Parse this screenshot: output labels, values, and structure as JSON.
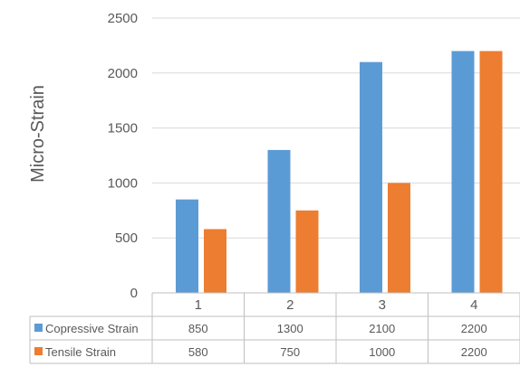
{
  "chart_data": {
    "type": "bar",
    "title": "",
    "xlabel": "",
    "ylabel": "Micro-Strain",
    "categories": [
      "1",
      "2",
      "3",
      "4"
    ],
    "series": [
      {
        "name": "Copressive Strain",
        "color": "#5b9bd5",
        "values": [
          850,
          1300,
          2100,
          2200
        ]
      },
      {
        "name": "Tensile Strain",
        "color": "#ed7d31",
        "values": [
          580,
          750,
          1000,
          2200
        ]
      }
    ],
    "ylim": [
      0,
      2500
    ],
    "yticks": [
      0,
      500,
      1000,
      1500,
      2000,
      2500
    ],
    "grid": true,
    "legend": "data-table"
  }
}
